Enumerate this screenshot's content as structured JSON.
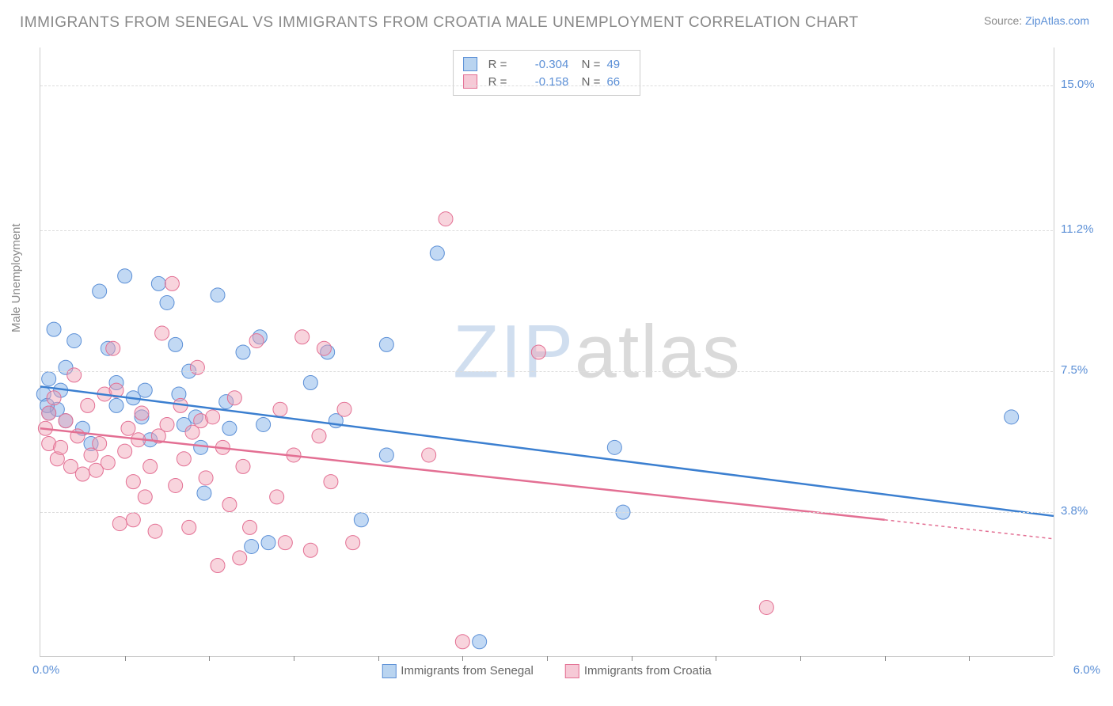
{
  "header": {
    "title": "IMMIGRANTS FROM SENEGAL VS IMMIGRANTS FROM CROATIA MALE UNEMPLOYMENT CORRELATION CHART",
    "source_label": "Source: ",
    "source_name": "ZipAtlas.com"
  },
  "chart": {
    "type": "scatter",
    "y_axis_label": "Male Unemployment",
    "xlim": [
      0.0,
      6.0
    ],
    "ylim": [
      0.0,
      16.0
    ],
    "x_ticks": [
      {
        "v": 0.0,
        "label": "0.0%"
      },
      {
        "v": 6.0,
        "label": "6.0%"
      }
    ],
    "y_ticks": [
      {
        "v": 3.8,
        "label": "3.8%"
      },
      {
        "v": 7.5,
        "label": "7.5%"
      },
      {
        "v": 11.2,
        "label": "11.2%"
      },
      {
        "v": 15.0,
        "label": "15.0%"
      }
    ],
    "x_tick_marks": [
      0.5,
      1.0,
      1.5,
      2.0,
      2.5,
      3.0,
      3.5,
      4.0,
      4.5,
      5.0,
      5.5
    ],
    "grid_color": "#dddddd",
    "background_color": "#ffffff",
    "watermark": {
      "zip": "ZIP",
      "atlas": "atlas"
    },
    "series": [
      {
        "name": "Immigrants from Senegal",
        "color_fill": "rgba(120,170,230,0.45)",
        "color_stroke": "#5b8fd6",
        "swatch_fill": "#b9d4f0",
        "swatch_border": "#5b8fd6",
        "marker_radius": 9,
        "R": "-0.304",
        "N": "49",
        "trend": {
          "x1": 0.0,
          "y1": 7.1,
          "x2": 6.0,
          "y2": 3.7,
          "color": "#3b7fd0",
          "width": 2.5
        },
        "points": [
          [
            0.02,
            6.9
          ],
          [
            0.05,
            7.3
          ],
          [
            0.05,
            6.4
          ],
          [
            0.08,
            8.6
          ],
          [
            0.1,
            6.5
          ],
          [
            0.12,
            7.0
          ],
          [
            0.15,
            6.2
          ],
          [
            0.15,
            7.6
          ],
          [
            0.2,
            8.3
          ],
          [
            0.25,
            6.0
          ],
          [
            0.3,
            5.6
          ],
          [
            0.35,
            9.6
          ],
          [
            0.4,
            8.1
          ],
          [
            0.45,
            7.2
          ],
          [
            0.45,
            6.6
          ],
          [
            0.5,
            10.0
          ],
          [
            0.55,
            6.8
          ],
          [
            0.6,
            6.3
          ],
          [
            0.62,
            7.0
          ],
          [
            0.65,
            5.7
          ],
          [
            0.7,
            9.8
          ],
          [
            0.75,
            9.3
          ],
          [
            0.8,
            8.2
          ],
          [
            0.82,
            6.9
          ],
          [
            0.85,
            6.1
          ],
          [
            0.88,
            7.5
          ],
          [
            0.92,
            6.3
          ],
          [
            0.95,
            5.5
          ],
          [
            0.97,
            4.3
          ],
          [
            1.05,
            9.5
          ],
          [
            1.1,
            6.7
          ],
          [
            1.12,
            6.0
          ],
          [
            1.2,
            8.0
          ],
          [
            1.25,
            2.9
          ],
          [
            1.3,
            8.4
          ],
          [
            1.32,
            6.1
          ],
          [
            1.35,
            3.0
          ],
          [
            1.6,
            7.2
          ],
          [
            1.7,
            8.0
          ],
          [
            1.75,
            6.2
          ],
          [
            1.9,
            3.6
          ],
          [
            2.05,
            5.3
          ],
          [
            2.05,
            8.2
          ],
          [
            2.35,
            10.6
          ],
          [
            2.6,
            0.4
          ],
          [
            3.4,
            5.5
          ],
          [
            3.45,
            3.8
          ],
          [
            5.75,
            6.3
          ],
          [
            0.04,
            6.6
          ]
        ]
      },
      {
        "name": "Immigrants from Croatia",
        "color_fill": "rgba(240,160,180,0.45)",
        "color_stroke": "#e36f93",
        "swatch_fill": "#f6c9d6",
        "swatch_border": "#e36f93",
        "marker_radius": 9,
        "R": "-0.158",
        "N": "66",
        "trend": {
          "x1": 0.0,
          "y1": 6.0,
          "x2": 5.0,
          "y2": 3.6,
          "color": "#e36f93",
          "width": 2.5,
          "dash_extend": {
            "x1": 5.0,
            "y1": 3.6,
            "x2": 6.0,
            "y2": 3.1
          }
        },
        "points": [
          [
            0.03,
            6.0
          ],
          [
            0.05,
            5.6
          ],
          [
            0.05,
            6.4
          ],
          [
            0.08,
            6.8
          ],
          [
            0.1,
            5.2
          ],
          [
            0.12,
            5.5
          ],
          [
            0.15,
            6.2
          ],
          [
            0.18,
            5.0
          ],
          [
            0.2,
            7.4
          ],
          [
            0.22,
            5.8
          ],
          [
            0.25,
            4.8
          ],
          [
            0.28,
            6.6
          ],
          [
            0.3,
            5.3
          ],
          [
            0.33,
            4.9
          ],
          [
            0.35,
            5.6
          ],
          [
            0.38,
            6.9
          ],
          [
            0.4,
            5.1
          ],
          [
            0.43,
            8.1
          ],
          [
            0.45,
            7.0
          ],
          [
            0.47,
            3.5
          ],
          [
            0.5,
            5.4
          ],
          [
            0.52,
            6.0
          ],
          [
            0.55,
            4.6
          ],
          [
            0.55,
            3.6
          ],
          [
            0.58,
            5.7
          ],
          [
            0.6,
            6.4
          ],
          [
            0.62,
            4.2
          ],
          [
            0.65,
            5.0
          ],
          [
            0.68,
            3.3
          ],
          [
            0.7,
            5.8
          ],
          [
            0.72,
            8.5
          ],
          [
            0.75,
            6.1
          ],
          [
            0.78,
            9.8
          ],
          [
            0.8,
            4.5
          ],
          [
            0.83,
            6.6
          ],
          [
            0.85,
            5.2
          ],
          [
            0.88,
            3.4
          ],
          [
            0.9,
            5.9
          ],
          [
            0.93,
            7.6
          ],
          [
            0.95,
            6.2
          ],
          [
            0.98,
            4.7
          ],
          [
            1.02,
            6.3
          ],
          [
            1.05,
            2.4
          ],
          [
            1.08,
            5.5
          ],
          [
            1.12,
            4.0
          ],
          [
            1.15,
            6.8
          ],
          [
            1.18,
            2.6
          ],
          [
            1.2,
            5.0
          ],
          [
            1.24,
            3.4
          ],
          [
            1.28,
            8.3
          ],
          [
            1.4,
            4.2
          ],
          [
            1.42,
            6.5
          ],
          [
            1.45,
            3.0
          ],
          [
            1.5,
            5.3
          ],
          [
            1.55,
            8.4
          ],
          [
            1.6,
            2.8
          ],
          [
            1.65,
            5.8
          ],
          [
            1.68,
            8.1
          ],
          [
            1.72,
            4.6
          ],
          [
            1.8,
            6.5
          ],
          [
            1.85,
            3.0
          ],
          [
            2.3,
            5.3
          ],
          [
            2.4,
            11.5
          ],
          [
            2.5,
            0.4
          ],
          [
            2.95,
            8.0
          ],
          [
            4.3,
            1.3
          ]
        ]
      }
    ],
    "legend_bottom": [
      {
        "label": "Immigrants from Senegal",
        "series": 0
      },
      {
        "label": "Immigrants from Croatia",
        "series": 1
      }
    ]
  }
}
